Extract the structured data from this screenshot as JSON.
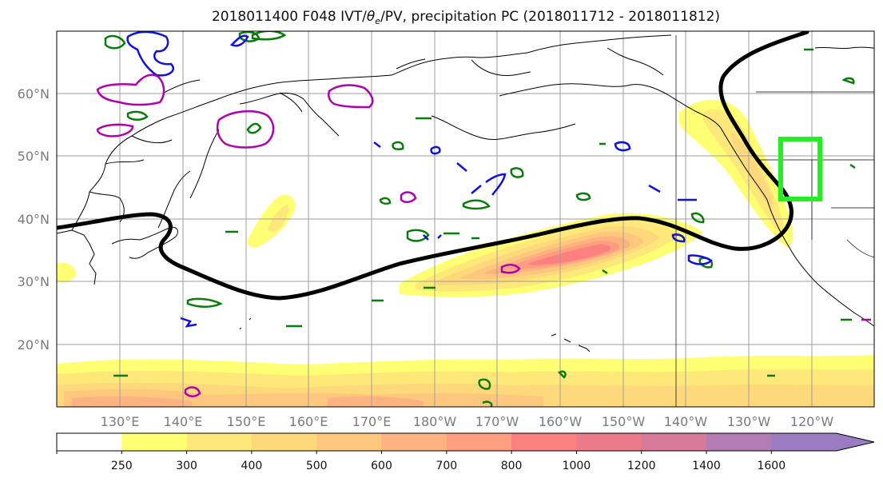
{
  "title": "2018011400 F048 IVT/θe/PV, precipitation PC (2018011712 - 2018011812)",
  "title_parts": {
    "pre": "2018011400 F048 IVT/",
    "theta": "θ",
    "sub": "e",
    "post": "/PV, precipitation PC (2018011712 - 2018011812)"
  },
  "map": {
    "lon_range": [
      120,
      250
    ],
    "lat_range": [
      10,
      70
    ],
    "lat_labels": [
      "60°N",
      "50°N",
      "40°N",
      "30°N",
      "20°N"
    ],
    "lon_labels": [
      "130°E",
      "140°E",
      "150°E",
      "160°E",
      "170°E",
      "180°W",
      "170°W",
      "160°W",
      "150°W",
      "140°W",
      "130°W",
      "120°W"
    ],
    "grid": true
  },
  "colorbar": {
    "levels": [
      "250",
      "300",
      "400",
      "500",
      "600",
      "700",
      "800",
      "1000",
      "1200",
      "1400",
      "1600"
    ],
    "colors": [
      "#ffffff",
      "#ffff73",
      "#fde879",
      "#fed97b",
      "#fdc77e",
      "#fdb380",
      "#fe9d80",
      "#fb8080",
      "#ec7a88",
      "#d77a9a",
      "#b37cb5",
      "#9b7bc2"
    ],
    "extend": "max"
  },
  "contour_colors": {
    "theta_e": "#000000",
    "pv_low": "#0a7c0a",
    "pv_neg": "#1010e0",
    "pv_high": "#b000b0",
    "target_box": "#22ee22"
  }
}
